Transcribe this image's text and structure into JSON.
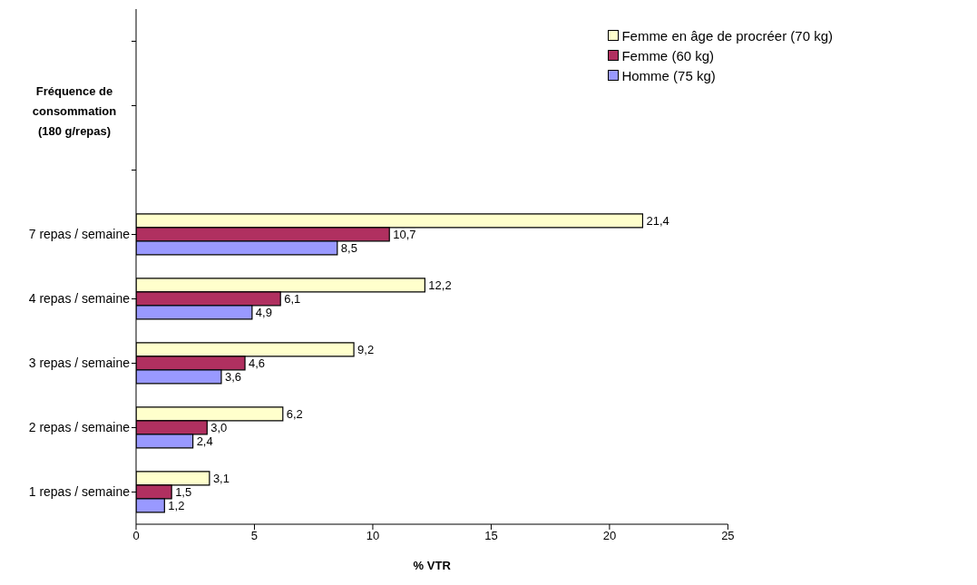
{
  "chart_data": {
    "type": "bar",
    "orientation": "horizontal",
    "xlabel": "% VTR",
    "ylabel": "Fréquence de consommation (180 g/repas)",
    "categories": [
      null,
      null,
      null,
      "7 repas / semaine",
      "4 repas / semaine",
      "3 repas / semaine",
      "2 repas / semaine",
      "1 repas / semaine"
    ],
    "series": [
      {
        "name": "Femme en âge de procréer (70 kg)",
        "color": "#ffffcc",
        "values": [
          null,
          null,
          null,
          21.4,
          12.2,
          9.2,
          6.2,
          3.1
        ],
        "value_labels": [
          null,
          null,
          null,
          "21,4",
          "12,2",
          "9,2",
          "6,2",
          "3,1"
        ]
      },
      {
        "name": "Femme (60 kg)",
        "color": "#b03060",
        "values": [
          null,
          null,
          null,
          10.7,
          6.1,
          4.6,
          3.0,
          1.5
        ],
        "value_labels": [
          null,
          null,
          null,
          "10,7",
          "6,1",
          "4,6",
          "3,0",
          "1,5"
        ]
      },
      {
        "name": "Homme (75 kg)",
        "color": "#9999ff",
        "values": [
          null,
          null,
          null,
          8.5,
          4.9,
          3.6,
          2.4,
          1.2
        ],
        "value_labels": [
          null,
          null,
          null,
          "8,5",
          "4,9",
          "3,6",
          "2,4",
          "1,2"
        ]
      }
    ],
    "xlim": [
      0,
      25
    ],
    "xticks": [
      0,
      5,
      10,
      15,
      20,
      25
    ],
    "grid": false,
    "legend": "top right"
  }
}
